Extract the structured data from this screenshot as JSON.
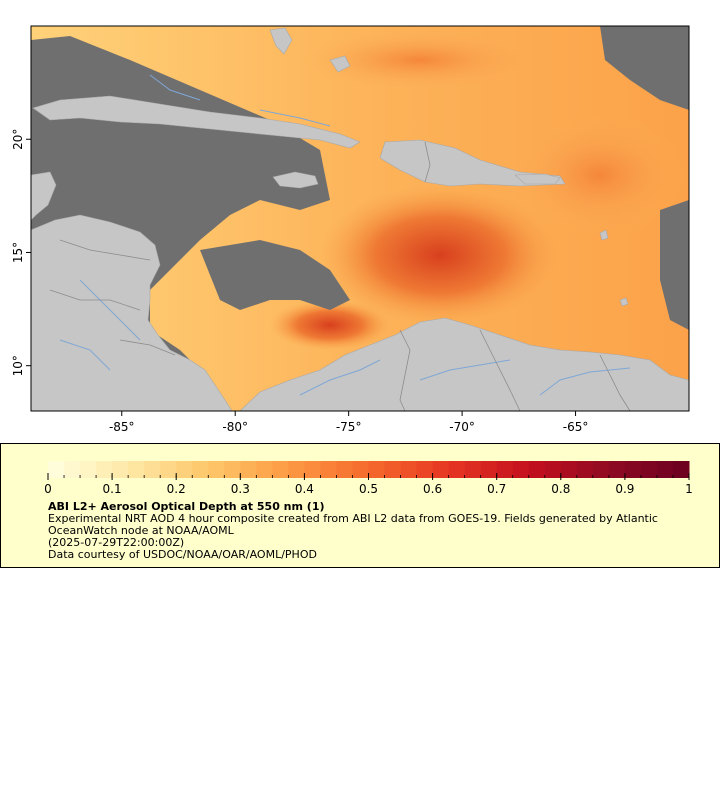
{
  "map": {
    "lon_range": [
      -89,
      -60
    ],
    "lat_range": [
      8,
      25
    ],
    "lon_ticks": [
      {
        "value": -85,
        "label": "-85°"
      },
      {
        "value": -80,
        "label": "-80°"
      },
      {
        "value": -75,
        "label": "-75°"
      },
      {
        "value": -70,
        "label": "-70°"
      },
      {
        "value": -65,
        "label": "-65°"
      }
    ],
    "lat_ticks": [
      {
        "value": 20,
        "label": "20°"
      },
      {
        "value": 15,
        "label": "15°"
      },
      {
        "value": 10,
        "label": "10°"
      }
    ],
    "colors": {
      "no_data": "#6f6f6f",
      "land": "#c6c6c6",
      "rivers": "#7fa7d6",
      "borders": "#8c8c8c",
      "frame": "#000000"
    }
  },
  "colorbar": {
    "range": [
      0,
      1
    ],
    "segments": 40,
    "tick_labels": [
      "0",
      "0.1",
      "0.2",
      "0.3",
      "0.4",
      "0.5",
      "0.6",
      "0.7",
      "0.8",
      "0.9",
      "1"
    ],
    "color_stops": [
      "#ffffe0",
      "#fee8a6",
      "#fdc76a",
      "#fd9a44",
      "#f56a2c",
      "#e63622",
      "#c4101e",
      "#8f0a22",
      "#6a0020"
    ]
  },
  "legend": {
    "title": "ABI L2+ Aerosol Optical Depth at 550 nm (1)",
    "description": "Experimental NRT AOD 4 hour composite created from ABI L2 data from GOES-19. Fields generated by Atlantic OceanWatch node at NOAA/AOML",
    "time": "(2025-07-29T22:00:00Z)",
    "credit": "Data courtesy of USDOC/NOAA/OAR/AOML/PHOD"
  }
}
